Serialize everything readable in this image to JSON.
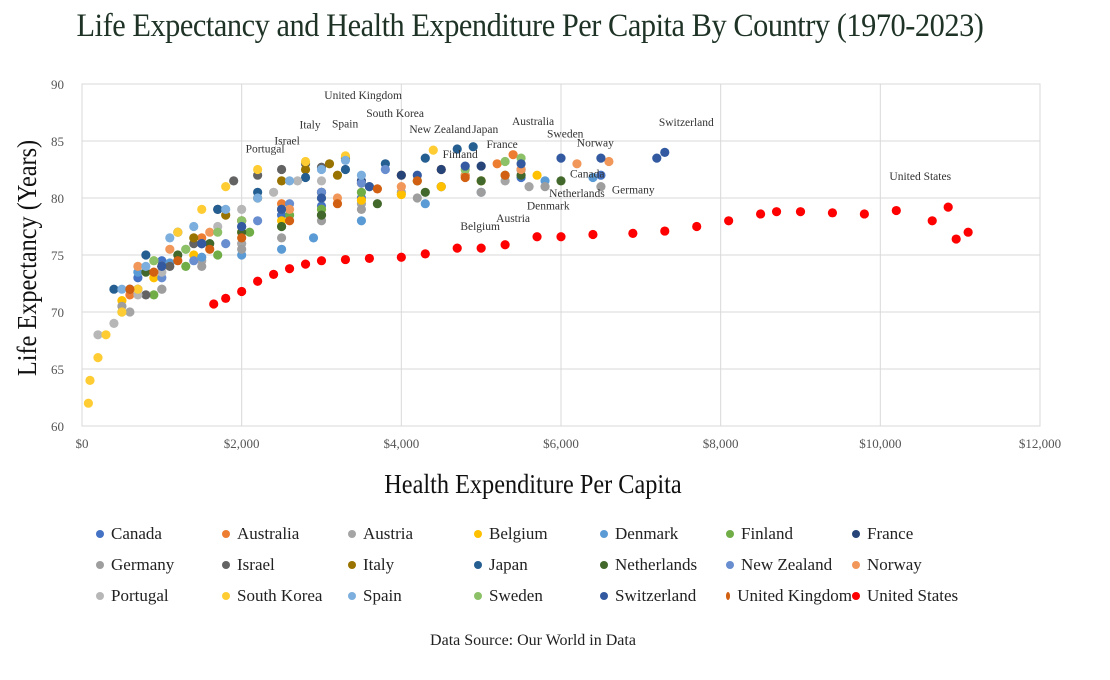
{
  "chart_data": {
    "type": "scatter",
    "title": "Life Expectancy and Health Expenditure Per Capita By Country (1970-2023)",
    "xlabel": "Health Expenditure Per Capita",
    "ylabel": "Life Expectancy (Years)",
    "xlim": [
      0,
      12000
    ],
    "ylim": [
      60,
      90
    ],
    "xticks": [
      0,
      2000,
      4000,
      6000,
      8000,
      10000,
      12000
    ],
    "xtick_labels": [
      "$0",
      "$2,000",
      "$4,000",
      "$6,000",
      "$8,000",
      "$10,000",
      "$12,000"
    ],
    "yticks": [
      60,
      65,
      70,
      75,
      80,
      85,
      90
    ],
    "ytick_labels": [
      "60",
      "65",
      "70",
      "75",
      "80",
      "85",
      "90"
    ],
    "grid": true,
    "legend_placement": "bottom",
    "source": "Data Source: Our World in Data",
    "series": [
      {
        "name": "Canada",
        "color": "#4472C4",
        "points": [
          [
            700,
            73
          ],
          [
            1000,
            74.5
          ],
          [
            1500,
            76
          ],
          [
            2000,
            77.5
          ],
          [
            2500,
            78.5
          ],
          [
            3000,
            79.3
          ],
          [
            3500,
            80
          ],
          [
            4500,
            81
          ],
          [
            5500,
            81.8
          ],
          [
            6500,
            82
          ]
        ]
      },
      {
        "name": "Australia",
        "color": "#ED7D31",
        "points": [
          [
            600,
            71.5
          ],
          [
            1000,
            74
          ],
          [
            1500,
            76.5
          ],
          [
            2000,
            78
          ],
          [
            2500,
            79.5
          ],
          [
            3000,
            80.5
          ],
          [
            3500,
            81.3
          ],
          [
            4000,
            82
          ],
          [
            4500,
            82.5
          ],
          [
            5200,
            83
          ],
          [
            5400,
            83.8
          ]
        ]
      },
      {
        "name": "Austria",
        "color": "#A5A5A5",
        "points": [
          [
            600,
            70
          ],
          [
            1000,
            72
          ],
          [
            1500,
            74.5
          ],
          [
            2000,
            76
          ],
          [
            2500,
            77.5
          ],
          [
            3000,
            78.5
          ],
          [
            3500,
            79.5
          ],
          [
            4000,
            80.5
          ],
          [
            4500,
            81
          ],
          [
            5300,
            81.5
          ],
          [
            5600,
            81
          ]
        ]
      },
      {
        "name": "Belgium",
        "color": "#FFC000",
        "points": [
          [
            500,
            71
          ],
          [
            900,
            73
          ],
          [
            1400,
            75
          ],
          [
            2000,
            77
          ],
          [
            2500,
            78
          ],
          [
            3000,
            79
          ],
          [
            3500,
            79.8
          ],
          [
            4000,
            80.3
          ],
          [
            4500,
            81
          ],
          [
            5000,
            81.5
          ],
          [
            5700,
            82
          ]
        ]
      },
      {
        "name": "Denmark",
        "color": "#5B9BD5",
        "points": [
          [
            700,
            73.5
          ],
          [
            1100,
            74.3
          ],
          [
            1500,
            74.8
          ],
          [
            2000,
            75
          ],
          [
            2500,
            75.5
          ],
          [
            2900,
            76.5
          ],
          [
            3500,
            78
          ],
          [
            4300,
            79.5
          ],
          [
            5000,
            80.5
          ],
          [
            5800,
            81.5
          ],
          [
            6400,
            81.8
          ]
        ]
      },
      {
        "name": "Finland",
        "color": "#70AD47",
        "points": [
          [
            500,
            70
          ],
          [
            900,
            71.5
          ],
          [
            1300,
            74
          ],
          [
            1700,
            75
          ],
          [
            2100,
            77
          ],
          [
            2600,
            78.5
          ],
          [
            3000,
            79
          ],
          [
            3500,
            80.5
          ],
          [
            4200,
            81.5
          ],
          [
            4800,
            82
          ],
          [
            5300,
            82
          ]
        ]
      },
      {
        "name": "France",
        "color": "#264478",
        "points": [
          [
            600,
            72
          ],
          [
            1000,
            74
          ],
          [
            1500,
            76
          ],
          [
            2000,
            78
          ],
          [
            2500,
            79
          ],
          [
            3000,
            80.5
          ],
          [
            3500,
            81.5
          ],
          [
            4000,
            82
          ],
          [
            4500,
            82.5
          ],
          [
            5000,
            82.8
          ],
          [
            5500,
            82.5
          ]
        ]
      },
      {
        "name": "Germany",
        "color": "#9E9E9E",
        "points": [
          [
            500,
            70.5
          ],
          [
            1000,
            72
          ],
          [
            1500,
            74
          ],
          [
            2000,
            75.5
          ],
          [
            2500,
            76.5
          ],
          [
            3000,
            78
          ],
          [
            3500,
            79
          ],
          [
            4200,
            80
          ],
          [
            5000,
            80.5
          ],
          [
            5800,
            81
          ],
          [
            6500,
            81
          ]
        ]
      },
      {
        "name": "Israel",
        "color": "#636363",
        "points": [
          [
            800,
            71.5
          ],
          [
            1100,
            74
          ],
          [
            1400,
            76
          ],
          [
            1700,
            79
          ],
          [
            1900,
            81.5
          ],
          [
            2200,
            82
          ],
          [
            2500,
            82.5
          ],
          [
            2800,
            83
          ],
          [
            3000,
            82.7
          ]
        ]
      },
      {
        "name": "Italy",
        "color": "#997300",
        "points": [
          [
            700,
            72
          ],
          [
            1000,
            74
          ],
          [
            1400,
            76.5
          ],
          [
            1800,
            78.5
          ],
          [
            2200,
            80
          ],
          [
            2500,
            81.5
          ],
          [
            2800,
            82.5
          ],
          [
            3100,
            83
          ],
          [
            3300,
            83.5
          ],
          [
            3200,
            82
          ]
        ]
      },
      {
        "name": "Japan",
        "color": "#255E91",
        "points": [
          [
            400,
            72
          ],
          [
            800,
            75
          ],
          [
            1200,
            77
          ],
          [
            1700,
            79
          ],
          [
            2200,
            80.5
          ],
          [
            2800,
            81.8
          ],
          [
            3300,
            82.5
          ],
          [
            3800,
            83
          ],
          [
            4300,
            83.5
          ],
          [
            4700,
            84.3
          ],
          [
            4900,
            84.5
          ]
        ]
      },
      {
        "name": "Netherlands",
        "color": "#43682B",
        "points": [
          [
            800,
            73.5
          ],
          [
            1200,
            75
          ],
          [
            1600,
            76
          ],
          [
            2000,
            77
          ],
          [
            2500,
            77.5
          ],
          [
            3000,
            78.5
          ],
          [
            3700,
            79.5
          ],
          [
            4300,
            80.5
          ],
          [
            5000,
            81.5
          ],
          [
            5500,
            82
          ],
          [
            6000,
            81.5
          ]
        ]
      },
      {
        "name": "New Zealand",
        "color": "#698ED0",
        "points": [
          [
            700,
            72
          ],
          [
            1000,
            73
          ],
          [
            1400,
            74.5
          ],
          [
            1800,
            76
          ],
          [
            2200,
            78
          ],
          [
            2600,
            79.5
          ],
          [
            3000,
            80.5
          ],
          [
            3500,
            81.3
          ],
          [
            3800,
            82.5
          ]
        ]
      },
      {
        "name": "Norway",
        "color": "#F1975A",
        "points": [
          [
            700,
            74
          ],
          [
            1100,
            75.5
          ],
          [
            1600,
            77
          ],
          [
            2000,
            78
          ],
          [
            2600,
            79
          ],
          [
            3200,
            80
          ],
          [
            4000,
            81
          ],
          [
            4800,
            82
          ],
          [
            5500,
            82.5
          ],
          [
            6200,
            83
          ],
          [
            6600,
            83.2
          ]
        ]
      },
      {
        "name": "Portugal",
        "color": "#B7B7B7",
        "points": [
          [
            200,
            68
          ],
          [
            400,
            69
          ],
          [
            700,
            71.5
          ],
          [
            1000,
            73.5
          ],
          [
            1300,
            75.5
          ],
          [
            1700,
            77.5
          ],
          [
            2000,
            79
          ],
          [
            2400,
            80.5
          ],
          [
            2700,
            81.5
          ],
          [
            3000,
            81.5
          ]
        ]
      },
      {
        "name": "South Korea",
        "color": "#FFCD33",
        "points": [
          [
            80,
            62
          ],
          [
            100,
            64
          ],
          [
            200,
            66
          ],
          [
            300,
            68
          ],
          [
            500,
            70
          ],
          [
            700,
            72
          ],
          [
            900,
            74.5
          ],
          [
            1200,
            77
          ],
          [
            1500,
            79
          ],
          [
            1800,
            81
          ],
          [
            2200,
            82.5
          ],
          [
            2800,
            83.2
          ],
          [
            3300,
            83.7
          ],
          [
            4400,
            84.2
          ]
        ]
      },
      {
        "name": "Spain",
        "color": "#7CAFDD",
        "points": [
          [
            500,
            72
          ],
          [
            800,
            74
          ],
          [
            1100,
            76.5
          ],
          [
            1400,
            77.5
          ],
          [
            1800,
            79
          ],
          [
            2200,
            80
          ],
          [
            2600,
            81.5
          ],
          [
            3000,
            82.5
          ],
          [
            3300,
            83.3
          ],
          [
            3500,
            82
          ]
        ]
      },
      {
        "name": "Sweden",
        "color": "#8CC168",
        "points": [
          [
            900,
            74.5
          ],
          [
            1300,
            75.5
          ],
          [
            1700,
            77
          ],
          [
            2000,
            78
          ],
          [
            2500,
            79
          ],
          [
            3000,
            80
          ],
          [
            3600,
            81
          ],
          [
            4200,
            81.5
          ],
          [
            4800,
            82.5
          ],
          [
            5300,
            83.2
          ],
          [
            5500,
            83.5
          ]
        ]
      },
      {
        "name": "Switzerland",
        "color": "#335AA1",
        "points": [
          [
            1000,
            74
          ],
          [
            1500,
            76
          ],
          [
            2000,
            77.5
          ],
          [
            2500,
            79
          ],
          [
            3000,
            80
          ],
          [
            3600,
            81
          ],
          [
            4200,
            82
          ],
          [
            4800,
            82.8
          ],
          [
            5500,
            83
          ],
          [
            6000,
            83.5
          ],
          [
            6500,
            83.5
          ],
          [
            7200,
            83.5
          ],
          [
            7300,
            84
          ]
        ]
      },
      {
        "name": "United Kingdom",
        "color": "#D26012",
        "points": [
          [
            600,
            72
          ],
          [
            900,
            73.5
          ],
          [
            1200,
            74.5
          ],
          [
            1600,
            75.5
          ],
          [
            2000,
            76.5
          ],
          [
            2600,
            78
          ],
          [
            3200,
            79.5
          ],
          [
            3700,
            80.8
          ],
          [
            4200,
            81.5
          ],
          [
            4800,
            81.8
          ],
          [
            5300,
            82
          ]
        ]
      },
      {
        "name": "United States",
        "color": "#FF0000",
        "points": [
          [
            1650,
            70.7
          ],
          [
            1800,
            71.2
          ],
          [
            2000,
            71.8
          ],
          [
            2200,
            72.7
          ],
          [
            2400,
            73.3
          ],
          [
            2600,
            73.8
          ],
          [
            2800,
            74.2
          ],
          [
            3000,
            74.5
          ],
          [
            3300,
            74.6
          ],
          [
            3600,
            74.7
          ],
          [
            4000,
            74.8
          ],
          [
            4300,
            75.1
          ],
          [
            4700,
            75.6
          ],
          [
            5000,
            75.6
          ],
          [
            5300,
            75.9
          ],
          [
            5700,
            76.6
          ],
          [
            6000,
            76.6
          ],
          [
            6400,
            76.8
          ],
          [
            6900,
            76.9
          ],
          [
            7300,
            77.1
          ],
          [
            7700,
            77.5
          ],
          [
            8100,
            78
          ],
          [
            8500,
            78.6
          ],
          [
            8700,
            78.8
          ],
          [
            9000,
            78.8
          ],
          [
            9400,
            78.7
          ],
          [
            9800,
            78.6
          ],
          [
            10200,
            78.9
          ],
          [
            10650,
            78
          ],
          [
            10850,
            79.2
          ],
          [
            10950,
            76.4
          ],
          [
            11100,
            77
          ]
        ]
      }
    ],
    "annotations": [
      {
        "text": "United Kingdom",
        "x": 3521,
        "y": 88.7
      },
      {
        "text": "South Korea",
        "x": 3922,
        "y": 87.1
      },
      {
        "text": "Italy",
        "x": 2857,
        "y": 86.1
      },
      {
        "text": "Spain",
        "x": 3296,
        "y": 86.2
      },
      {
        "text": "Israel",
        "x": 2569,
        "y": 84.7
      },
      {
        "text": "Portugal",
        "x": 2293,
        "y": 84.0
      },
      {
        "text": "New Zealand",
        "x": 4486,
        "y": 85.7
      },
      {
        "text": "Japan",
        "x": 5050,
        "y": 85.7
      },
      {
        "text": "Australia",
        "x": 5650,
        "y": 86.4
      },
      {
        "text": "Sweden",
        "x": 6053,
        "y": 85.3
      },
      {
        "text": "France",
        "x": 5263,
        "y": 84.4
      },
      {
        "text": "Finland",
        "x": 4737,
        "y": 83.5
      },
      {
        "text": "Norway",
        "x": 6430,
        "y": 84.5
      },
      {
        "text": "Canada",
        "x": 6328,
        "y": 81.8
      },
      {
        "text": "Netherlands",
        "x": 6200,
        "y": 80.1
      },
      {
        "text": "Germany",
        "x": 6905,
        "y": 80.4
      },
      {
        "text": "Denmark",
        "x": 5840,
        "y": 79.0
      },
      {
        "text": "Austria",
        "x": 5400,
        "y": 77.9
      },
      {
        "text": "Belgium",
        "x": 4987,
        "y": 77.2
      },
      {
        "text": "Switzerland",
        "x": 7570,
        "y": 86.3
      },
      {
        "text": "United States",
        "x": 10500,
        "y": 81.6
      }
    ]
  }
}
